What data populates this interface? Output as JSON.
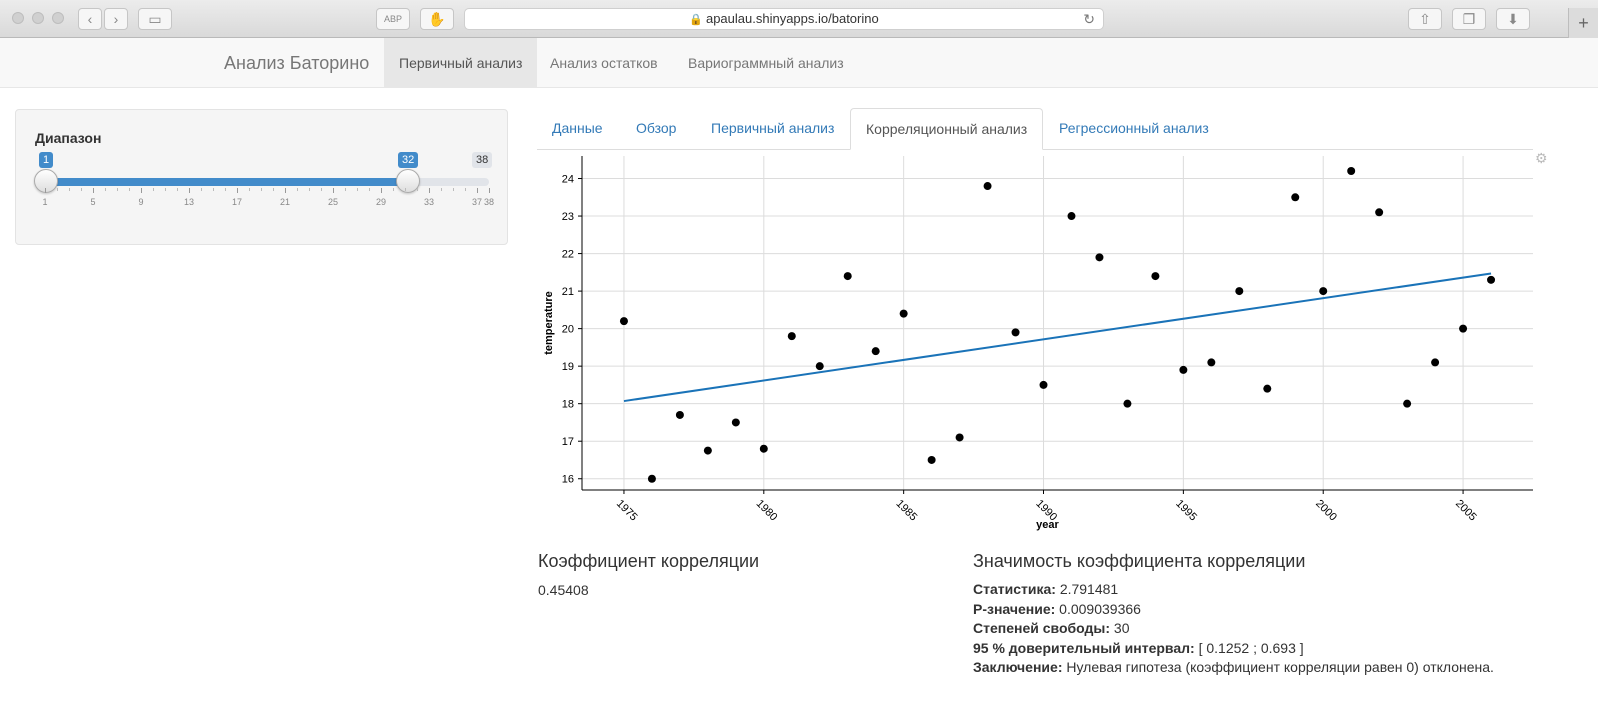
{
  "browser": {
    "url": "apaulau.shinyapps.io/batorino"
  },
  "navbar": {
    "brand": "Анализ Баторино",
    "items": [
      {
        "label": "Первичный анализ",
        "active": true
      },
      {
        "label": "Анализ остатков",
        "active": false
      },
      {
        "label": "Вариограммный анализ",
        "active": false
      }
    ]
  },
  "sidebar": {
    "slider": {
      "label": "Диапазон",
      "min": 1,
      "max": 38,
      "from": 1,
      "to": 32,
      "from_label": "1",
      "to_label": "32",
      "max_label": "38",
      "grid_labels": [
        "1",
        "5",
        "9",
        "13",
        "17",
        "21",
        "25",
        "29",
        "33",
        "37",
        "38"
      ]
    }
  },
  "tabs": [
    {
      "label": "Данные",
      "active": false
    },
    {
      "label": "Обзор",
      "active": false
    },
    {
      "label": "Первичный анализ",
      "active": false
    },
    {
      "label": "Корреляционный анализ",
      "active": true
    },
    {
      "label": "Регрессионный анализ",
      "active": false
    }
  ],
  "chart_data": {
    "type": "scatter",
    "xlabel": "year",
    "ylabel": "temperature",
    "xlim": [
      1973.5,
      2007.5
    ],
    "ylim": [
      15.7,
      24.6
    ],
    "x_ticks": [
      1975,
      1980,
      1985,
      1990,
      1995,
      2000,
      2005
    ],
    "y_ticks": [
      16,
      17,
      18,
      19,
      20,
      21,
      22,
      23,
      24
    ],
    "grid": true,
    "x": [
      1975,
      1976,
      1977,
      1978,
      1979,
      1980,
      1981,
      1982,
      1983,
      1984,
      1985,
      1986,
      1987,
      1988,
      1989,
      1990,
      1991,
      1992,
      1993,
      1994,
      1995,
      1996,
      1997,
      1998,
      1999,
      2000,
      2001,
      2002,
      2003,
      2004,
      2005,
      2006
    ],
    "y": [
      20.2,
      16.0,
      17.7,
      16.75,
      17.5,
      16.8,
      19.8,
      19.0,
      21.4,
      19.4,
      20.4,
      16.5,
      17.1,
      23.8,
      19.9,
      18.5,
      23.0,
      21.9,
      18.0,
      21.4,
      18.9,
      19.1,
      21.0,
      18.4,
      23.5,
      21.0,
      24.2,
      23.1,
      18.0,
      19.1,
      20.0,
      21.3
    ],
    "fit_line": {
      "x": [
        1975,
        2006
      ],
      "y": [
        18.07,
        21.47
      ]
    }
  },
  "results": {
    "corr_title": "Коэффициент корреляции",
    "corr_value": "0.45408",
    "sig_title": "Значимость коэффициента корреляции",
    "stats": [
      {
        "label": "Статистика:",
        "value": "2.791481"
      },
      {
        "label": "P-значение:",
        "value": "0.009039366"
      },
      {
        "label": "Степеней свободы:",
        "value": "30"
      },
      {
        "label": "95 % доверительный интервал:",
        "value": "[ 0.1252 ; 0.693 ]"
      },
      {
        "label": "Заключение:",
        "value": "Нулевая гипотеза (коэффициент корреляции равен 0) отклонена."
      }
    ]
  },
  "colors": {
    "fit_line": "#1a73b8",
    "points": "#000000",
    "link": "#337ab7"
  }
}
